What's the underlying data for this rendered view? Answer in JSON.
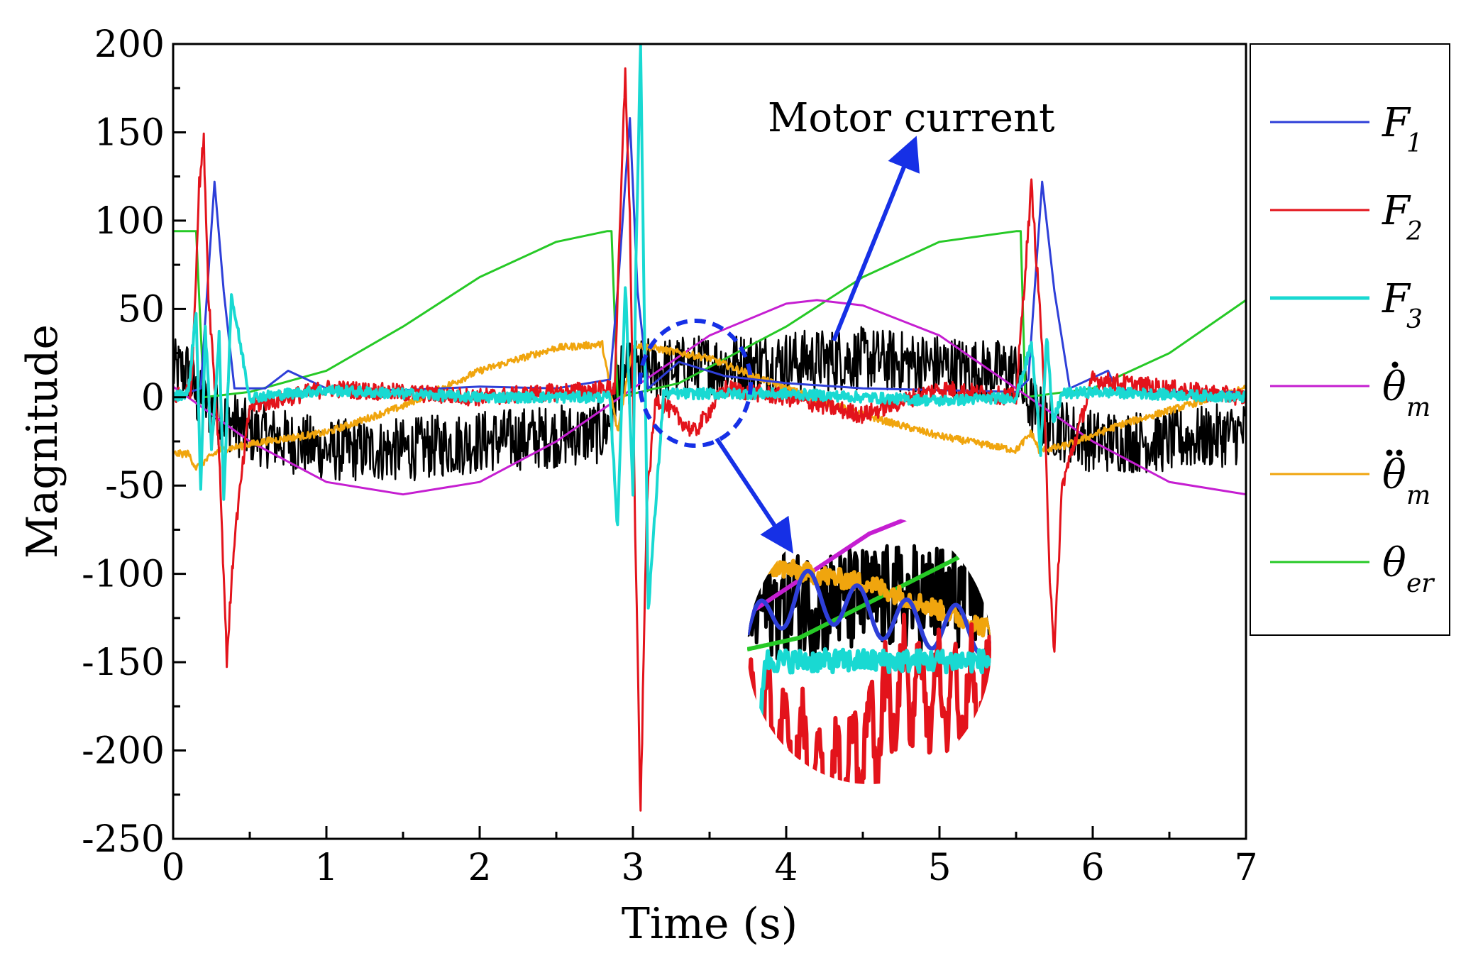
{
  "chart_data": {
    "type": "line",
    "xlabel": "Time (s)",
    "ylabel": "Magnitude",
    "xlim": [
      0,
      7
    ],
    "ylim": [
      -250,
      200
    ],
    "xticks": [
      0,
      1,
      2,
      3,
      4,
      5,
      6,
      7
    ],
    "yticks": [
      200,
      150,
      100,
      50,
      0,
      -50,
      -100,
      -150,
      -200,
      -250
    ],
    "grid": false,
    "legend_position": "right-outside",
    "annotation": "Motor current",
    "series": [
      {
        "name": "F1",
        "symbol": "F",
        "sub": "1",
        "dots": 0,
        "color": "#2e3fd8",
        "x": [
          0,
          0.18,
          0.27,
          0.33,
          0.4,
          0.6,
          0.75,
          1.0,
          1.5,
          2.0,
          2.5,
          2.85,
          2.9,
          2.98,
          3.03,
          3.1,
          3.3,
          3.6,
          4.0,
          4.5,
          5.0,
          5.5,
          5.58,
          5.67,
          5.75,
          5.85,
          6.1,
          6.15,
          6.3,
          7.0
        ],
        "y": [
          0,
          5,
          122,
          60,
          5,
          5,
          15,
          5,
          4,
          6,
          5,
          10,
          60,
          158,
          60,
          5,
          20,
          12,
          8,
          5,
          4,
          3,
          10,
          122,
          60,
          5,
          15,
          5,
          3,
          3
        ]
      },
      {
        "name": "F2",
        "symbol": "F",
        "sub": "2",
        "dots": 0,
        "color": "#e3131b",
        "x": [
          0,
          0.12,
          0.17,
          0.2,
          0.23,
          0.3,
          0.35,
          0.4,
          0.5,
          1.0,
          2.0,
          2.88,
          2.95,
          2.98,
          3.02,
          3.05,
          3.09,
          3.15,
          3.4,
          3.6,
          4.0,
          4.5,
          5.0,
          5.5,
          5.6,
          5.67,
          5.72,
          5.75,
          5.8,
          6.0,
          7.0
        ],
        "y": [
          0,
          5,
          120,
          145,
          60,
          -30,
          -148,
          -80,
          -5,
          5,
          0,
          5,
          185,
          100,
          -100,
          -236,
          -60,
          0,
          -20,
          5,
          0,
          -10,
          5,
          0,
          120,
          30,
          -100,
          -145,
          -50,
          10,
          0
        ]
      },
      {
        "name": "F3",
        "symbol": "F",
        "sub": "3",
        "dots": 0,
        "color": "#19d9d2",
        "x": [
          0,
          0.1,
          0.15,
          0.18,
          0.21,
          0.25,
          0.3,
          0.33,
          0.38,
          0.5,
          1.0,
          2.0,
          2.85,
          2.9,
          2.95,
          3.0,
          3.02,
          3.05,
          3.1,
          3.2,
          4.0,
          5.0,
          5.5,
          5.6,
          5.66,
          5.7,
          5.74,
          5.8,
          6.0,
          7.0
        ],
        "y": [
          0,
          3,
          50,
          -55,
          40,
          -30,
          35,
          -58,
          58,
          0,
          4,
          0,
          0,
          -75,
          65,
          -55,
          80,
          200,
          -120,
          2,
          2,
          -2,
          0,
          30,
          -30,
          35,
          -15,
          2,
          3,
          0
        ]
      },
      {
        "name": "theta_m_dot",
        "symbol": "θ",
        "sub": "m",
        "dots": 1,
        "color": "#c51ed1",
        "x": [
          0,
          0.5,
          1.0,
          1.5,
          2.0,
          2.5,
          3.0,
          3.5,
          4.0,
          4.2,
          4.5,
          5.0,
          5.5,
          6.0,
          6.5,
          7.0
        ],
        "y": [
          6,
          -25,
          -48,
          -55,
          -48,
          -25,
          5,
          35,
          53,
          55,
          52,
          35,
          5,
          -25,
          -48,
          -55
        ]
      },
      {
        "name": "theta_m_ddot",
        "symbol": "θ",
        "sub": "m",
        "dots": 2,
        "color": "#f0a50e",
        "x": [
          0,
          0.1,
          0.15,
          0.3,
          0.6,
          1.0,
          1.5,
          2.0,
          2.5,
          2.8,
          2.85,
          2.9,
          3.0,
          3.5,
          4.0,
          4.5,
          5.0,
          5.5,
          5.6,
          5.65,
          5.8,
          6.2,
          6.6,
          7.0
        ],
        "y": [
          -32,
          -32,
          -40,
          -30,
          -25,
          -20,
          -5,
          15,
          28,
          30,
          5,
          -20,
          30,
          22,
          5,
          -10,
          -22,
          -30,
          -20,
          -30,
          -28,
          -15,
          -5,
          5
        ]
      },
      {
        "name": "theta_er",
        "symbol": "θ",
        "sub": "er",
        "dots": 0,
        "color": "#26c926",
        "x": [
          0,
          0.15,
          0.2,
          0.5,
          1.0,
          1.5,
          2.0,
          2.5,
          2.83,
          2.86,
          2.9,
          3.3,
          4.0,
          4.5,
          5.0,
          5.5,
          5.53,
          5.56,
          6.0,
          6.5,
          7.0
        ],
        "y": [
          94,
          94,
          0,
          3,
          15,
          40,
          68,
          88,
          94,
          94,
          0,
          8,
          40,
          68,
          88,
          94,
          94,
          0,
          5,
          25,
          55
        ]
      },
      {
        "name": "Motor current",
        "symbol": "",
        "sub": "",
        "dots": 0,
        "color": "#000000",
        "x": [
          0,
          0.1,
          0.15,
          0.3,
          0.5,
          1.0,
          1.5,
          2.0,
          2.5,
          2.8,
          2.87,
          2.9,
          3.0,
          3.5,
          4.0,
          4.5,
          5.0,
          5.3,
          5.5,
          5.56,
          5.6,
          5.7,
          6.0,
          6.5,
          7.0
        ],
        "y": [
          15,
          15,
          0,
          -10,
          -20,
          -30,
          -30,
          -25,
          -22,
          -20,
          -10,
          10,
          15,
          18,
          20,
          22,
          18,
          15,
          15,
          0,
          -5,
          -15,
          -25,
          -25,
          -20
        ]
      }
    ]
  }
}
